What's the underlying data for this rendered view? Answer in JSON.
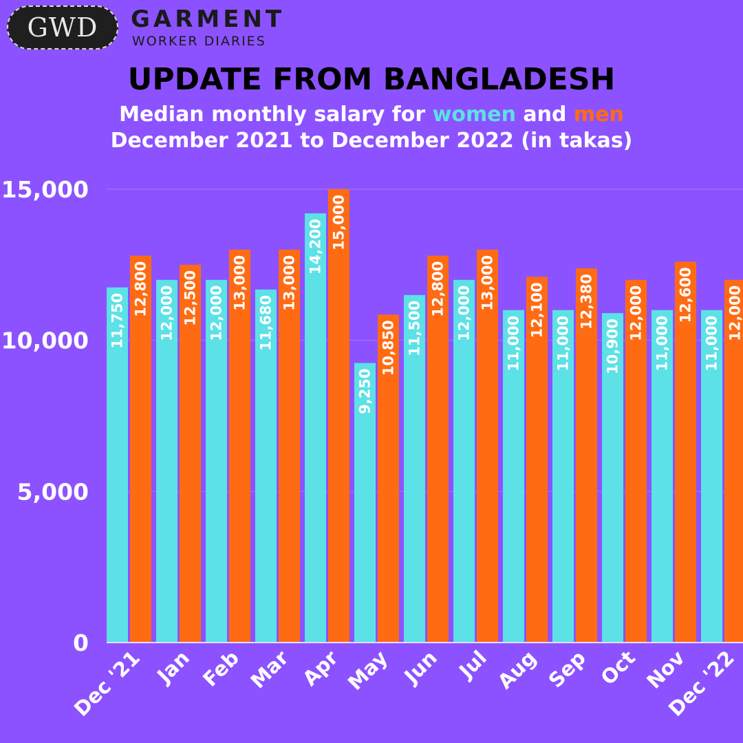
{
  "brand": {
    "badge": "GWD",
    "name": "GARMENT",
    "subname": "WORKER DIARIES"
  },
  "headline": "UPDATE FROM BANGLADESH",
  "subtitle": {
    "prefix": "Median monthly salary for ",
    "women": "women",
    "middle": " and ",
    "men": "men",
    "line2": "December 2021 to December 2022 (in takas)"
  },
  "colors": {
    "background": "#8c52ff",
    "women": "#5ce1e6",
    "men": "#ff6b13"
  },
  "chart_data": {
    "type": "bar",
    "title": "Median monthly salary for women and men",
    "subtitle": "December 2021 to December 2022 (in takas)",
    "xlabel": "",
    "ylabel": "",
    "ylim": [
      0,
      15000
    ],
    "yticks": [
      0,
      5000,
      10000,
      15000
    ],
    "ytick_labels": [
      "0",
      "5,000",
      "10,000",
      "15,000"
    ],
    "grid": true,
    "legend": "in subtitle (colored words)",
    "categories": [
      "Dec '21",
      "Jan",
      "Feb",
      "Mar",
      "Apr",
      "May",
      "Jun",
      "Jul",
      "Aug",
      "Sep",
      "Oct",
      "Nov",
      "Dec '22"
    ],
    "series": [
      {
        "name": "women",
        "color": "#5ce1e6",
        "values": [
          11750,
          12000,
          12000,
          11680,
          14200,
          9250,
          11500,
          12000,
          11000,
          11000,
          10900,
          11000,
          11000
        ],
        "labels": [
          "11,750",
          "12,000",
          "12,000",
          "11,680",
          "14,200",
          "9,250",
          "11,500",
          "12,000",
          "11,000",
          "11,000",
          "10,900",
          "11,000",
          "11,000"
        ]
      },
      {
        "name": "men",
        "color": "#ff6b13",
        "values": [
          12800,
          12500,
          13000,
          13000,
          15000,
          10850,
          12800,
          13000,
          12100,
          12380,
          12000,
          12600,
          12000
        ],
        "labels": [
          "12,800",
          "12,500",
          "13,000",
          "13,000",
          "15,000",
          "10,850",
          "12,800",
          "13,000",
          "12,100",
          "12,380",
          "12,000",
          "12,600",
          "12,000"
        ]
      }
    ]
  }
}
